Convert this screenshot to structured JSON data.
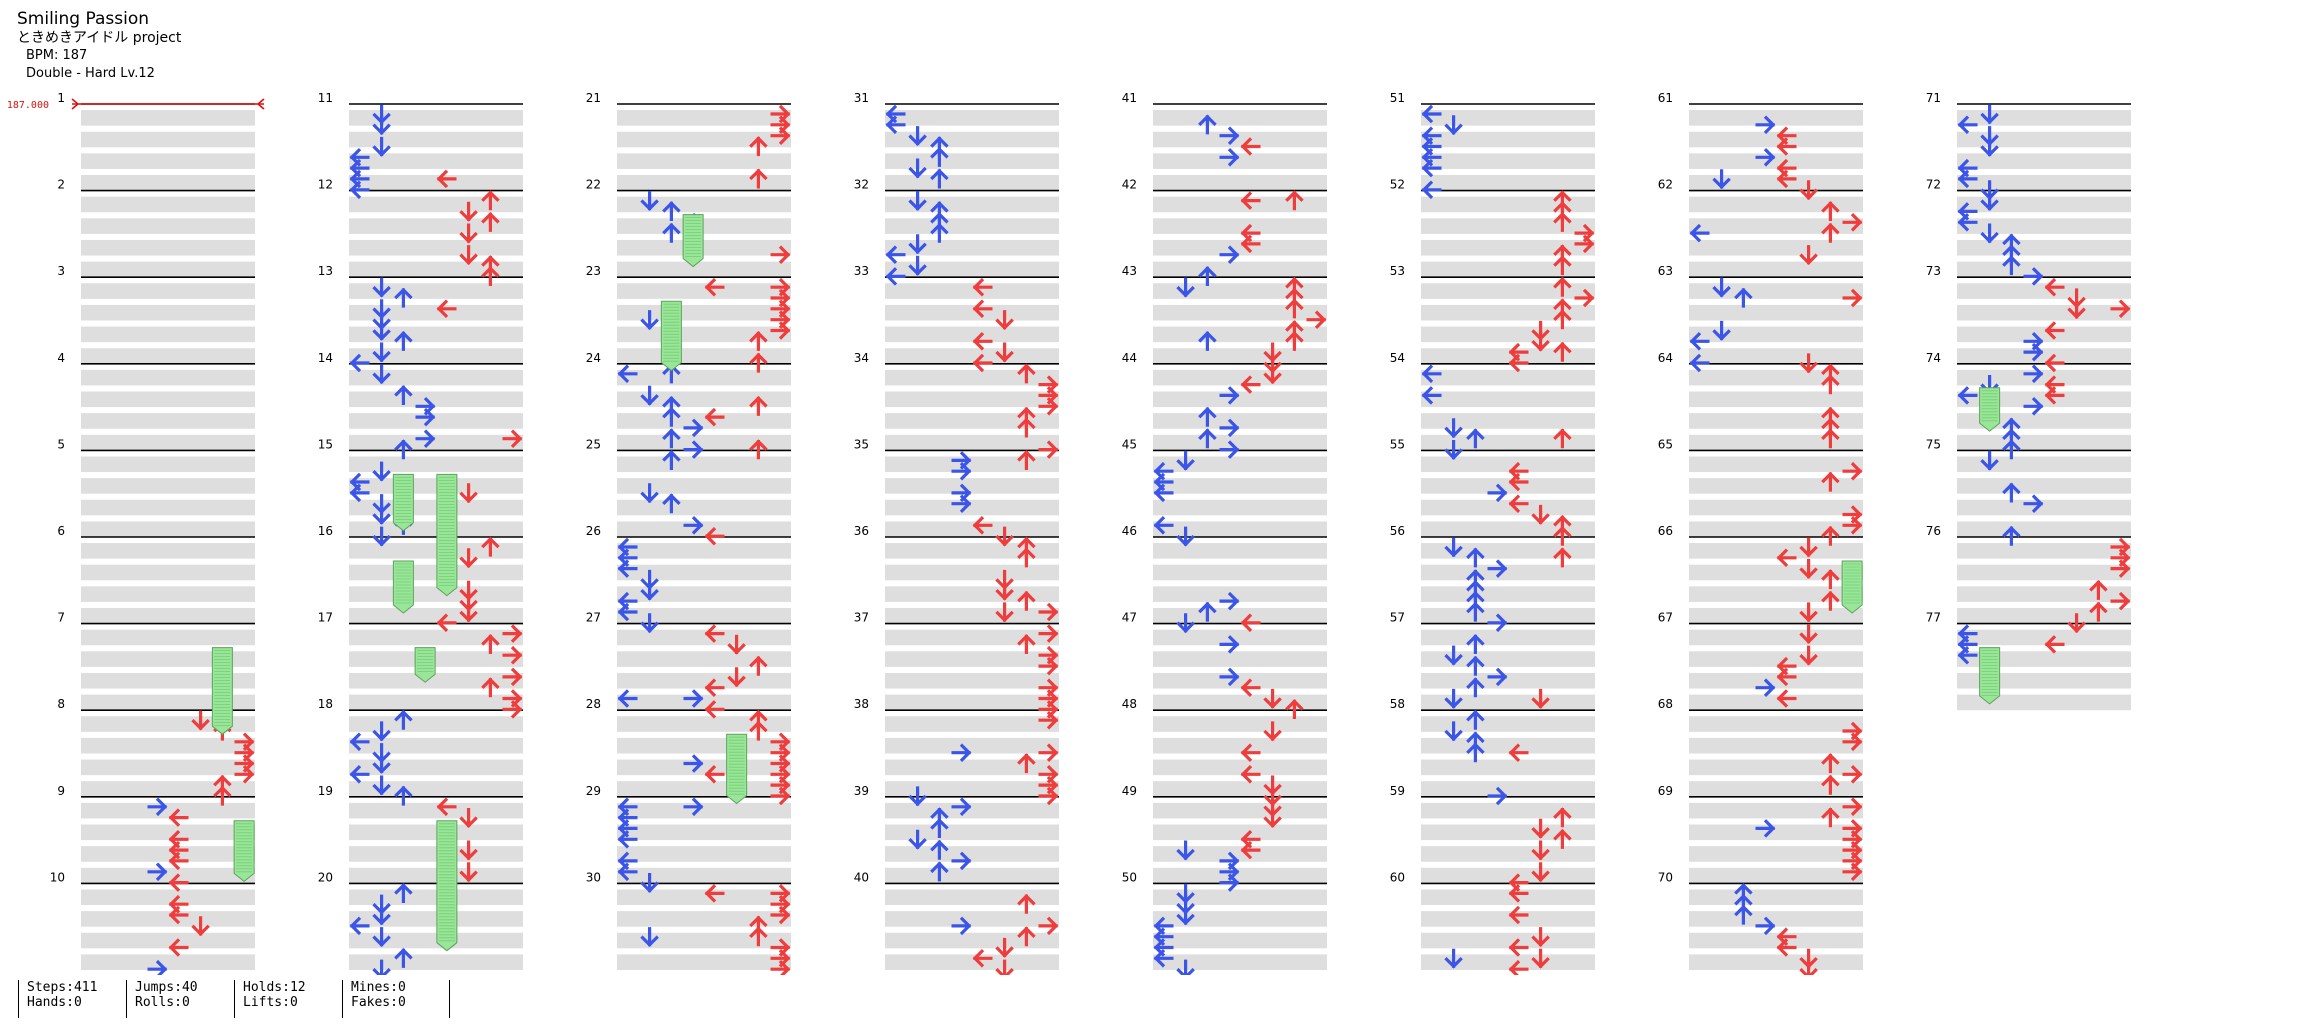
{
  "song": {
    "title": "Smiling Passion",
    "artist": "ときめきアイドル project",
    "bpm_text": "BPM: 187",
    "difficulty_text": "Double - Hard  Lv.12"
  },
  "chart_view": {
    "bpm_marker_label": "187.000",
    "total_measures": 77,
    "measures_per_column": 10,
    "lane_count": 8,
    "final_measure_rows": 4,
    "colors": {
      "left_panel_arrow": "#3a55e8",
      "right_panel_arrow": "#ef3c3c",
      "hold": "#9be59b",
      "stripe": "#dedede",
      "bpm_marker": "#dd1111"
    }
  },
  "stats": {
    "steps": "Steps:411",
    "hands": "Hands:0",
    "jumps": "Jumps:40",
    "rolls": "Rolls:0",
    "holds": "Holds:12",
    "lifts": "Lifts:0",
    "mines": "Mines:0",
    "fakes": "Fakes:0"
  }
}
